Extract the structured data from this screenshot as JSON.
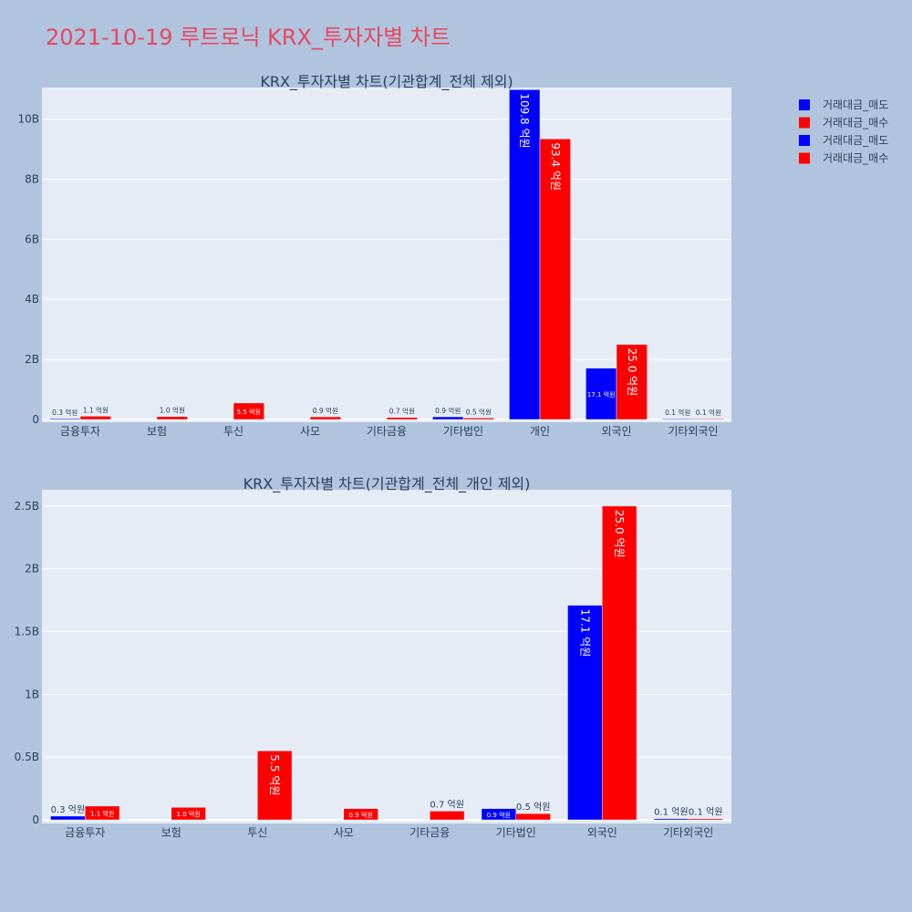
{
  "page_title": "2021-10-19 루트로닉 KRX_투자자별 차트",
  "colors": {
    "sell": "#0000ff",
    "buy": "#ff0000",
    "title": "#e8475f",
    "plot_bg": "#e5ecf6",
    "page_bg": "#b0c4de"
  },
  "legend": [
    "거래대금_매도",
    "거래대금_매수",
    "거래대금_매도",
    "거래대금_매수"
  ],
  "chart_data": [
    {
      "type": "bar",
      "title": "KRX_투자자별 차트(기관합계_전체 제외)",
      "categories": [
        "금융투자",
        "보험",
        "투신",
        "사모",
        "기타금융",
        "기타법인",
        "개인",
        "외국인",
        "기타외국인"
      ],
      "series": [
        {
          "name": "거래대금_매도",
          "values": [
            0.03,
            null,
            null,
            null,
            null,
            0.09,
            10.98,
            1.71,
            0.01
          ],
          "labels": [
            "0.3 억원",
            "",
            "",
            "",
            "",
            "0.9 억원",
            "109.8 억원",
            "17.1 억원",
            "0.1 억원"
          ]
        },
        {
          "name": "거래대금_매수",
          "values": [
            0.11,
            0.1,
            0.55,
            0.09,
            0.07,
            0.05,
            9.34,
            2.5,
            0.01
          ],
          "labels": [
            "1.1 억원",
            "1.0 억원",
            "5.5 억원",
            "0.9 억원",
            "0.7 억원",
            "0.5 억원",
            "93.4 억원",
            "25.0 억원",
            "0.1 억원"
          ]
        }
      ],
      "ylim": [
        0,
        11.05
      ],
      "yticks": [
        0,
        2,
        4,
        6,
        8,
        10
      ],
      "ytick_labels": [
        "0",
        "2B",
        "4B",
        "6B",
        "8B",
        "10B"
      ],
      "xlabel": "",
      "ylabel": "",
      "grid": true,
      "legend": "top-right"
    },
    {
      "type": "bar",
      "title": "KRX_투자자별 차트(기관합계_전체_개인 제외)",
      "categories": [
        "금융투자",
        "보험",
        "투신",
        "사모",
        "기타금융",
        "기타법인",
        "외국인",
        "기타외국인"
      ],
      "series": [
        {
          "name": "거래대금_매도",
          "values": [
            0.03,
            null,
            null,
            null,
            null,
            0.09,
            1.71,
            0.01
          ],
          "labels": [
            "0.3 억원",
            "",
            "",
            "",
            "",
            "0.9 억원",
            "17.1 억원",
            "0.1 억원"
          ]
        },
        {
          "name": "거래대금_매수",
          "values": [
            0.11,
            0.1,
            0.55,
            0.09,
            0.07,
            0.05,
            2.5,
            0.01
          ],
          "labels": [
            "1.1 억원",
            "1.0 억원",
            "5.5 억원",
            "0.9 억원",
            "0.7 억원",
            "0.5 억원",
            "25.0 억원",
            "0.1 억원"
          ]
        }
      ],
      "ylim": [
        0,
        2.63
      ],
      "yticks": [
        0,
        0.5,
        1,
        1.5,
        2,
        2.5
      ],
      "ytick_labels": [
        "0",
        "0.5B",
        "1B",
        "1.5B",
        "2B",
        "2.5B"
      ],
      "xlabel": "",
      "ylabel": "",
      "grid": true,
      "legend": "top-right"
    }
  ]
}
